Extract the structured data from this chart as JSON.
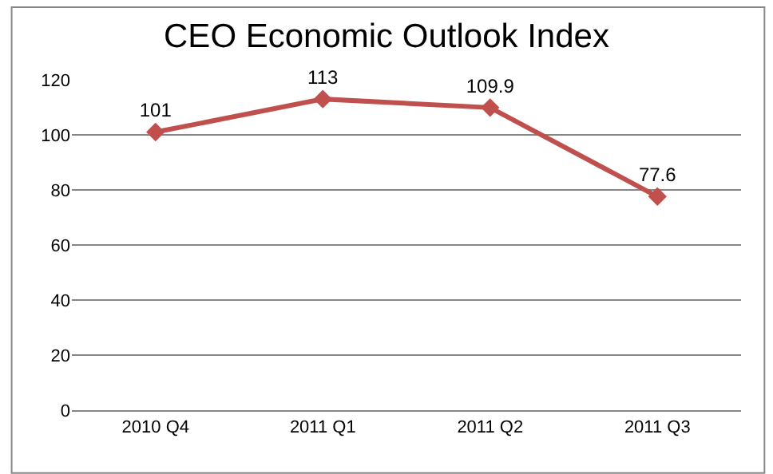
{
  "chart_data": {
    "type": "line",
    "title": "CEO Economic Outlook Index",
    "categories": [
      "2010 Q4",
      "2011 Q1",
      "2011 Q2",
      "2011 Q3"
    ],
    "series": [
      {
        "color": "#c0504d",
        "values": [
          101,
          113,
          109.9,
          77.6
        ]
      }
    ],
    "ylim": [
      0,
      120
    ],
    "yticks": [
      0,
      20,
      40,
      60,
      80,
      100,
      120
    ],
    "grid": "y",
    "legend": false,
    "marker": "diamond",
    "line_style": "solid",
    "data_labels": true
  }
}
